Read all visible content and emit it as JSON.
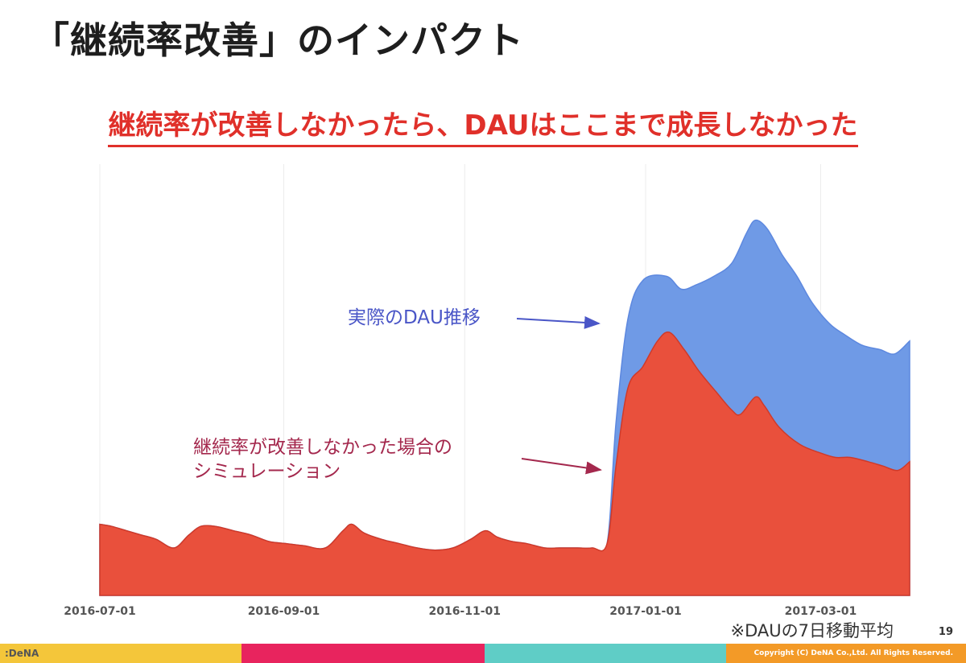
{
  "slide": {
    "title": "「継続率改善」のインパクト",
    "subtitle": "継続率が改善しなかったら、DAUはここまで成長しなかった",
    "note": "※DAUの7日移動平均",
    "page_number": "19",
    "logo": ":DeNA",
    "copyright": "Copyright (C) DeNA Co.,Ltd. All Rights Reserved."
  },
  "colors": {
    "actual_fill": "#6f9ae6",
    "actual_stroke": "#5d88df",
    "sim_fill": "#e9503c",
    "sim_stroke": "#cf3a2a",
    "annotation_blue": "#4a56c7",
    "annotation_red": "#a4284d"
  },
  "chart_data": {
    "type": "area",
    "x_start": "2016-07-01",
    "x_end": "2017-03-31",
    "x_ticks": [
      "2016-07-01",
      "2016-09-01",
      "2016-11-01",
      "2017-01-01",
      "2017-03-01"
    ],
    "ylim": [
      0,
      100
    ],
    "series": [
      {
        "name": "実際のDAU推移",
        "points": [
          [
            "2016-07-01",
            16.5
          ],
          [
            "2016-07-05",
            16
          ],
          [
            "2016-07-10",
            15
          ],
          [
            "2016-07-15",
            14
          ],
          [
            "2016-07-20",
            13
          ],
          [
            "2016-07-26",
            11
          ],
          [
            "2016-07-31",
            14
          ],
          [
            "2016-08-04",
            16
          ],
          [
            "2016-08-09",
            16
          ],
          [
            "2016-08-15",
            15
          ],
          [
            "2016-08-21",
            14
          ],
          [
            "2016-08-27",
            12.5
          ],
          [
            "2016-09-02",
            12
          ],
          [
            "2016-09-08",
            11.5
          ],
          [
            "2016-09-15",
            11
          ],
          [
            "2016-09-21",
            15
          ],
          [
            "2016-09-24",
            16.5
          ],
          [
            "2016-09-28",
            14.5
          ],
          [
            "2016-10-04",
            13
          ],
          [
            "2016-10-10",
            12
          ],
          [
            "2016-10-16",
            11
          ],
          [
            "2016-10-22",
            10.5
          ],
          [
            "2016-10-28",
            11
          ],
          [
            "2016-11-03",
            13
          ],
          [
            "2016-11-08",
            15
          ],
          [
            "2016-11-12",
            13.5
          ],
          [
            "2016-11-17",
            12.5
          ],
          [
            "2016-11-22",
            12
          ],
          [
            "2016-11-28",
            11
          ],
          [
            "2016-12-03",
            11
          ],
          [
            "2016-12-09",
            11
          ],
          [
            "2016-12-14",
            11
          ],
          [
            "2016-12-19",
            12
          ],
          [
            "2016-12-22",
            40
          ],
          [
            "2016-12-26",
            64
          ],
          [
            "2016-12-31",
            73
          ],
          [
            "2017-01-08",
            74
          ],
          [
            "2017-01-13",
            71
          ],
          [
            "2017-01-18",
            72
          ],
          [
            "2017-01-24",
            74
          ],
          [
            "2017-01-30",
            77
          ],
          [
            "2017-02-04",
            84
          ],
          [
            "2017-02-07",
            87
          ],
          [
            "2017-02-11",
            85
          ],
          [
            "2017-02-16",
            79
          ],
          [
            "2017-02-21",
            74
          ],
          [
            "2017-02-26",
            68
          ],
          [
            "2017-03-04",
            63
          ],
          [
            "2017-03-09",
            60.5
          ],
          [
            "2017-03-15",
            58
          ],
          [
            "2017-03-21",
            57
          ],
          [
            "2017-03-26",
            56
          ],
          [
            "2017-03-31",
            59
          ]
        ]
      },
      {
        "name": "継続率が改善しなかった場合のシミュレーション",
        "points": [
          [
            "2016-07-01",
            16.5
          ],
          [
            "2016-07-05",
            16
          ],
          [
            "2016-07-10",
            15
          ],
          [
            "2016-07-15",
            14
          ],
          [
            "2016-07-20",
            13
          ],
          [
            "2016-07-26",
            11
          ],
          [
            "2016-07-31",
            14
          ],
          [
            "2016-08-04",
            16
          ],
          [
            "2016-08-09",
            16
          ],
          [
            "2016-08-15",
            15
          ],
          [
            "2016-08-21",
            14
          ],
          [
            "2016-08-27",
            12.5
          ],
          [
            "2016-09-02",
            12
          ],
          [
            "2016-09-08",
            11.5
          ],
          [
            "2016-09-15",
            11
          ],
          [
            "2016-09-21",
            15
          ],
          [
            "2016-09-24",
            16.5
          ],
          [
            "2016-09-28",
            14.5
          ],
          [
            "2016-10-04",
            13
          ],
          [
            "2016-10-10",
            12
          ],
          [
            "2016-10-16",
            11
          ],
          [
            "2016-10-22",
            10.5
          ],
          [
            "2016-10-28",
            11
          ],
          [
            "2016-11-03",
            13
          ],
          [
            "2016-11-08",
            15
          ],
          [
            "2016-11-12",
            13.5
          ],
          [
            "2016-11-17",
            12.5
          ],
          [
            "2016-11-22",
            12
          ],
          [
            "2016-11-28",
            11
          ],
          [
            "2016-12-03",
            11
          ],
          [
            "2016-12-09",
            11
          ],
          [
            "2016-12-14",
            11
          ],
          [
            "2016-12-19",
            12
          ],
          [
            "2016-12-22",
            30
          ],
          [
            "2016-12-26",
            48
          ],
          [
            "2016-12-31",
            53
          ],
          [
            "2017-01-05",
            59
          ],
          [
            "2017-01-09",
            61
          ],
          [
            "2017-01-14",
            57
          ],
          [
            "2017-01-19",
            52
          ],
          [
            "2017-01-25",
            47
          ],
          [
            "2017-01-30",
            43
          ],
          [
            "2017-02-02",
            42
          ],
          [
            "2017-02-07",
            46
          ],
          [
            "2017-02-10",
            44
          ],
          [
            "2017-02-15",
            39
          ],
          [
            "2017-02-22",
            35
          ],
          [
            "2017-03-01",
            33
          ],
          [
            "2017-03-06",
            32
          ],
          [
            "2017-03-11",
            32
          ],
          [
            "2017-03-17",
            31
          ],
          [
            "2017-03-22",
            30
          ],
          [
            "2017-03-27",
            29
          ],
          [
            "2017-03-31",
            31
          ]
        ]
      }
    ],
    "annotations": [
      {
        "text": "実際のDAU推移",
        "series": 0
      },
      {
        "lines": [
          "継続率が改善しなかった場合の",
          "シミュレーション"
        ],
        "series": 1
      }
    ]
  }
}
